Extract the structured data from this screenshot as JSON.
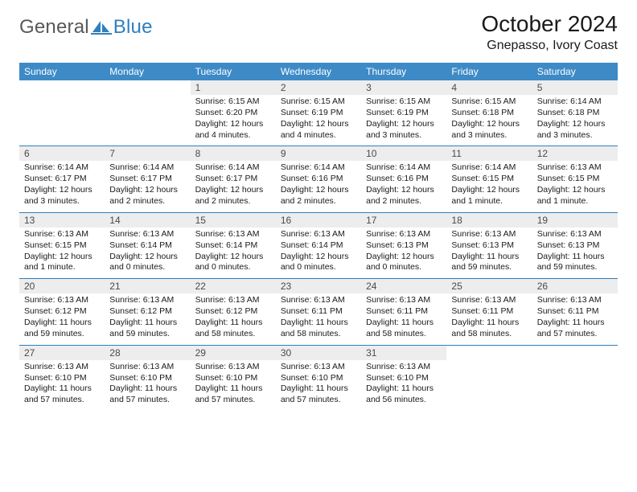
{
  "brand": {
    "word1": "General",
    "word2": "Blue"
  },
  "title": "October 2024",
  "location": "Gnepasso, Ivory Coast",
  "colors": {
    "header_bg": "#3d8ac6",
    "header_text": "#ffffff",
    "daynum_bg": "#ededed",
    "daynum_text": "#4a4a4a",
    "rule": "#2f7fbd",
    "body_text": "#1a1a1a",
    "logo_gray": "#595959",
    "logo_blue": "#2f7fbd"
  },
  "weekdays": [
    "Sunday",
    "Monday",
    "Tuesday",
    "Wednesday",
    "Thursday",
    "Friday",
    "Saturday"
  ],
  "weeks": [
    [
      null,
      null,
      {
        "n": "1",
        "sr": "6:15 AM",
        "ss": "6:20 PM",
        "dl": "12 hours and 4 minutes."
      },
      {
        "n": "2",
        "sr": "6:15 AM",
        "ss": "6:19 PM",
        "dl": "12 hours and 4 minutes."
      },
      {
        "n": "3",
        "sr": "6:15 AM",
        "ss": "6:19 PM",
        "dl": "12 hours and 3 minutes."
      },
      {
        "n": "4",
        "sr": "6:15 AM",
        "ss": "6:18 PM",
        "dl": "12 hours and 3 minutes."
      },
      {
        "n": "5",
        "sr": "6:14 AM",
        "ss": "6:18 PM",
        "dl": "12 hours and 3 minutes."
      }
    ],
    [
      {
        "n": "6",
        "sr": "6:14 AM",
        "ss": "6:17 PM",
        "dl": "12 hours and 3 minutes."
      },
      {
        "n": "7",
        "sr": "6:14 AM",
        "ss": "6:17 PM",
        "dl": "12 hours and 2 minutes."
      },
      {
        "n": "8",
        "sr": "6:14 AM",
        "ss": "6:17 PM",
        "dl": "12 hours and 2 minutes."
      },
      {
        "n": "9",
        "sr": "6:14 AM",
        "ss": "6:16 PM",
        "dl": "12 hours and 2 minutes."
      },
      {
        "n": "10",
        "sr": "6:14 AM",
        "ss": "6:16 PM",
        "dl": "12 hours and 2 minutes."
      },
      {
        "n": "11",
        "sr": "6:14 AM",
        "ss": "6:15 PM",
        "dl": "12 hours and 1 minute."
      },
      {
        "n": "12",
        "sr": "6:13 AM",
        "ss": "6:15 PM",
        "dl": "12 hours and 1 minute."
      }
    ],
    [
      {
        "n": "13",
        "sr": "6:13 AM",
        "ss": "6:15 PM",
        "dl": "12 hours and 1 minute."
      },
      {
        "n": "14",
        "sr": "6:13 AM",
        "ss": "6:14 PM",
        "dl": "12 hours and 0 minutes."
      },
      {
        "n": "15",
        "sr": "6:13 AM",
        "ss": "6:14 PM",
        "dl": "12 hours and 0 minutes."
      },
      {
        "n": "16",
        "sr": "6:13 AM",
        "ss": "6:14 PM",
        "dl": "12 hours and 0 minutes."
      },
      {
        "n": "17",
        "sr": "6:13 AM",
        "ss": "6:13 PM",
        "dl": "12 hours and 0 minutes."
      },
      {
        "n": "18",
        "sr": "6:13 AM",
        "ss": "6:13 PM",
        "dl": "11 hours and 59 minutes."
      },
      {
        "n": "19",
        "sr": "6:13 AM",
        "ss": "6:13 PM",
        "dl": "11 hours and 59 minutes."
      }
    ],
    [
      {
        "n": "20",
        "sr": "6:13 AM",
        "ss": "6:12 PM",
        "dl": "11 hours and 59 minutes."
      },
      {
        "n": "21",
        "sr": "6:13 AM",
        "ss": "6:12 PM",
        "dl": "11 hours and 59 minutes."
      },
      {
        "n": "22",
        "sr": "6:13 AM",
        "ss": "6:12 PM",
        "dl": "11 hours and 58 minutes."
      },
      {
        "n": "23",
        "sr": "6:13 AM",
        "ss": "6:11 PM",
        "dl": "11 hours and 58 minutes."
      },
      {
        "n": "24",
        "sr": "6:13 AM",
        "ss": "6:11 PM",
        "dl": "11 hours and 58 minutes."
      },
      {
        "n": "25",
        "sr": "6:13 AM",
        "ss": "6:11 PM",
        "dl": "11 hours and 58 minutes."
      },
      {
        "n": "26",
        "sr": "6:13 AM",
        "ss": "6:11 PM",
        "dl": "11 hours and 57 minutes."
      }
    ],
    [
      {
        "n": "27",
        "sr": "6:13 AM",
        "ss": "6:10 PM",
        "dl": "11 hours and 57 minutes."
      },
      {
        "n": "28",
        "sr": "6:13 AM",
        "ss": "6:10 PM",
        "dl": "11 hours and 57 minutes."
      },
      {
        "n": "29",
        "sr": "6:13 AM",
        "ss": "6:10 PM",
        "dl": "11 hours and 57 minutes."
      },
      {
        "n": "30",
        "sr": "6:13 AM",
        "ss": "6:10 PM",
        "dl": "11 hours and 57 minutes."
      },
      {
        "n": "31",
        "sr": "6:13 AM",
        "ss": "6:10 PM",
        "dl": "11 hours and 56 minutes."
      },
      null,
      null
    ]
  ],
  "labels": {
    "sunrise": "Sunrise:",
    "sunset": "Sunset:",
    "daylight": "Daylight:"
  }
}
